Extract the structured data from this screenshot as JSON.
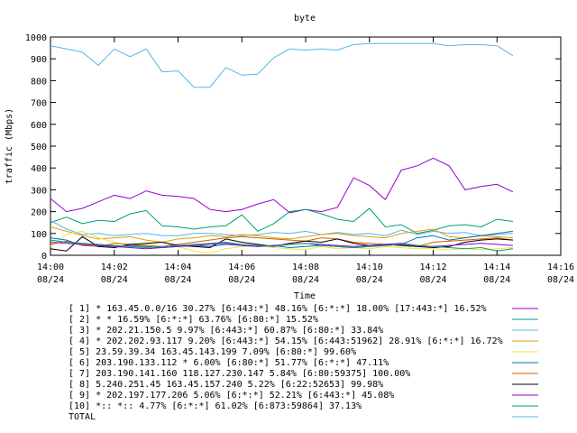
{
  "chart_data": {
    "type": "line",
    "title": "byte",
    "xlabel": "Time",
    "ylabel": "traffic (Mbps)",
    "xlim": [
      "14:00",
      "14:16"
    ],
    "ylim": [
      0,
      1000
    ],
    "grid": false,
    "legend_placement": "bottom",
    "x_ticks": [
      {
        "time": "14:00",
        "date": "08/24"
      },
      {
        "time": "14:02",
        "date": "08/24"
      },
      {
        "time": "14:04",
        "date": "08/24"
      },
      {
        "time": "14:06",
        "date": "08/24"
      },
      {
        "time": "14:08",
        "date": "08/24"
      },
      {
        "time": "14:10",
        "date": "08/24"
      },
      {
        "time": "14:12",
        "date": "08/24"
      },
      {
        "time": "14:14",
        "date": "08/24"
      },
      {
        "time": "14:16",
        "date": "08/24"
      }
    ],
    "y_ticks": [
      0,
      100,
      200,
      300,
      400,
      500,
      600,
      700,
      800,
      900,
      1000
    ],
    "x": [
      "14:00:00",
      "14:00:30",
      "14:01:00",
      "14:01:30",
      "14:02:00",
      "14:02:30",
      "14:03:00",
      "14:03:30",
      "14:04:00",
      "14:04:30",
      "14:05:00",
      "14:05:30",
      "14:06:00",
      "14:06:30",
      "14:07:00",
      "14:07:30",
      "14:08:00",
      "14:08:30",
      "14:09:00",
      "14:09:30",
      "14:10:00",
      "14:10:30",
      "14:11:00",
      "14:11:30",
      "14:12:00",
      "14:12:30",
      "14:13:00",
      "14:13:30",
      "14:14:00",
      "14:14:30"
    ],
    "series": [
      {
        "name": "[ 1] * 163.45.0.0/16 30.27%  [6:443:*] 48.16% [6:*:*] 18.00% [17:443:*] 16.52%",
        "color": "#9400d3",
        "values": [
          260,
          200,
          215,
          245,
          275,
          260,
          295,
          275,
          270,
          260,
          210,
          200,
          210,
          235,
          255,
          195,
          210,
          200,
          220,
          355,
          320,
          255,
          390,
          410,
          445,
          410,
          300,
          315,
          325,
          290
        ]
      },
      {
        "name": "[ 2] * * 16.59%  [6:*:*] 63.76%  [6:80:*] 15.52%",
        "color": "#009e73",
        "values": [
          150,
          175,
          145,
          160,
          155,
          190,
          205,
          135,
          130,
          120,
          130,
          135,
          185,
          110,
          145,
          200,
          210,
          190,
          165,
          155,
          215,
          130,
          140,
          100,
          115,
          135,
          140,
          130,
          165,
          155
        ]
      },
      {
        "name": "[ 3] * 202.21.150.5 9.97%  [6:443:*] 60.87% [6:80:*] 33.84%",
        "color": "#56b4e9",
        "values": [
          160,
          120,
          95,
          100,
          90,
          95,
          100,
          90,
          90,
          100,
          100,
          95,
          90,
          95,
          105,
          100,
          110,
          95,
          105,
          95,
          100,
          90,
          115,
          95,
          110,
          100,
          105,
          90,
          95,
          100
        ]
      },
      {
        "name": "[ 4] * 202.202.93.117 9.20%  [6:443:*] 54.15% [6:443:51962] 28.91% [6:*:*] 16.72%",
        "color": "#e69f00",
        "values": [
          130,
          110,
          90,
          75,
          80,
          85,
          70,
          60,
          75,
          80,
          90,
          85,
          95,
          90,
          80,
          75,
          85,
          95,
          100,
          90,
          85,
          80,
          100,
          110,
          120,
          85,
          80,
          90,
          85,
          80
        ]
      },
      {
        "name": "[ 5] 23.59.39.34 163.45.143.199 7.09%  [6:80:*] 99.60%",
        "color": "#f0e442",
        "values": [
          40,
          95,
          110,
          80,
          60,
          45,
          50,
          60,
          40,
          20,
          10,
          30,
          40,
          45,
          35,
          30,
          25,
          40,
          30,
          35,
          30,
          40,
          35,
          30,
          30,
          25,
          30,
          25,
          30,
          35
        ]
      },
      {
        "name": "[ 6] 203.190.133.112 * 6.00%  [6:80:*] 51.77% [6:*:*] 47.11%",
        "color": "#0072b2",
        "values": [
          80,
          70,
          45,
          50,
          40,
          45,
          40,
          35,
          40,
          45,
          40,
          50,
          45,
          40,
          45,
          35,
          40,
          45,
          40,
          35,
          40,
          45,
          50,
          80,
          90,
          70,
          80,
          90,
          100,
          110
        ]
      },
      {
        "name": "[ 7] 203.190.141.160 118.127.230.147 5.84%  [6:80:59375] 100.00%",
        "color": "#d55e00",
        "values": [
          50,
          65,
          45,
          40,
          55,
          50,
          45,
          40,
          50,
          60,
          70,
          80,
          85,
          80,
          75,
          70,
          65,
          80,
          75,
          60,
          55,
          50,
          45,
          40,
          60,
          65,
          70,
          75,
          80,
          70
        ]
      },
      {
        "name": "[ 8] 5.240.251.45 163.45.157.240 5.22%  [6:22:52653] 99.98%",
        "color": "#000000",
        "values": [
          30,
          20,
          85,
          40,
          35,
          50,
          55,
          60,
          45,
          40,
          35,
          75,
          60,
          50,
          40,
          55,
          65,
          60,
          75,
          55,
          45,
          50,
          45,
          40,
          35,
          40,
          60,
          70,
          75,
          70
        ]
      },
      {
        "name": "[ 9] * 202.197.177.206 5.06%  [6:*:*] 52.21% [6:443:*] 45.08%",
        "color": "#9400d3",
        "values": [
          60,
          55,
          50,
          45,
          40,
          35,
          30,
          35,
          40,
          45,
          50,
          55,
          45,
          40,
          45,
          50,
          55,
          50,
          45,
          40,
          45,
          50,
          55,
          45,
          40,
          45,
          50,
          55,
          50,
          45
        ]
      },
      {
        "name": "[10] *:: *:: 4.77%  [6:*:*] 61.02% [6:873:59864] 37.13%",
        "color": "#009e73",
        "values": [
          70,
          60,
          55,
          50,
          45,
          40,
          35,
          40,
          45,
          50,
          55,
          60,
          50,
          45,
          40,
          50,
          55,
          45,
          40,
          35,
          40,
          45,
          50,
          45,
          40,
          35,
          30,
          35,
          20,
          30
        ]
      },
      {
        "name": "TOTAL",
        "color": "#56b4e9",
        "values": [
          960,
          945,
          930,
          870,
          945,
          910,
          945,
          840,
          845,
          770,
          770,
          860,
          825,
          830,
          905,
          945,
          940,
          945,
          940,
          965,
          970,
          970,
          970,
          970,
          970,
          960,
          965,
          965,
          960,
          915
        ]
      }
    ]
  }
}
